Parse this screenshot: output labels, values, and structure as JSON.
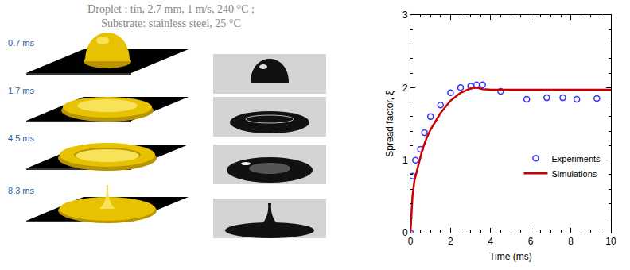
{
  "header": {
    "lines": [
      "Droplet : tin, 2.7 mm, 1 m/s, 240 °C ;",
      "Substrate: stainless steel, 25 °C"
    ]
  },
  "frames": [
    "0.7 ms",
    "1.7 ms",
    "4.5 ms",
    "8.3 ms"
  ],
  "chart_data": {
    "type": "line",
    "xlabel": "Time (ms)",
    "ylabel": "Spread factor, ξ",
    "xlim": [
      0,
      10
    ],
    "xticks": [
      0,
      2,
      4,
      6,
      8,
      10
    ],
    "ylim": [
      0,
      3
    ],
    "yticks": [
      0,
      1,
      2,
      3
    ],
    "grid": false,
    "legend": "lower right",
    "series": [
      {
        "name": "Experiments",
        "type": "scatter",
        "marker": "open_circle",
        "color": "#3333ff",
        "x": [
          0,
          0.1,
          0.25,
          0.5,
          0.7,
          1.0,
          1.5,
          2.0,
          2.5,
          3.0,
          3.3,
          3.6,
          4.5,
          5.8,
          6.8,
          7.6,
          8.3,
          9.3
        ],
        "values": [
          0,
          0.78,
          1.0,
          1.15,
          1.38,
          1.6,
          1.76,
          1.93,
          2.0,
          2.02,
          2.04,
          2.04,
          1.95,
          1.84,
          1.86,
          1.86,
          1.84,
          1.85
        ]
      },
      {
        "name": "Simulations",
        "type": "line",
        "line_style": "solid",
        "color": "#cc0000",
        "x": [
          0,
          0.1,
          0.2,
          0.4,
          0.6,
          0.8,
          1.0,
          1.5,
          2.0,
          2.5,
          3.0,
          3.3,
          3.6,
          4.0,
          5.0,
          6.0,
          8.0,
          10.0
        ],
        "values": [
          0,
          0.5,
          0.72,
          0.95,
          1.15,
          1.3,
          1.42,
          1.65,
          1.82,
          1.93,
          1.99,
          2.0,
          1.98,
          1.97,
          1.97,
          1.97,
          1.97,
          1.97
        ]
      }
    ]
  }
}
